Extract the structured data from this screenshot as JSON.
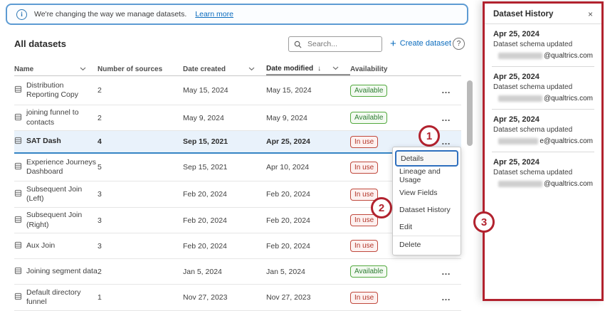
{
  "banner": {
    "message": "We're changing the way we manage datasets.",
    "link_label": "Learn more"
  },
  "toolbar": {
    "title": "All datasets",
    "search_placeholder": "Search...",
    "create_label": "Create dataset",
    "help_label": "?"
  },
  "table": {
    "columns": [
      {
        "label": "Name",
        "chevron": true,
        "sorted": false
      },
      {
        "label": "Number of sources",
        "chevron": false,
        "sorted": false
      },
      {
        "label": "Date created",
        "chevron": true,
        "sorted": false
      },
      {
        "label": "Date modified",
        "chevron": true,
        "sorted": true,
        "sort_icon": "↓"
      },
      {
        "label": "Availability",
        "chevron": false,
        "sorted": false
      }
    ],
    "rows": [
      {
        "name": "Distribution Reporting Copy",
        "sources": "2",
        "created": "May 15, 2024",
        "modified": "May 15, 2024",
        "availability": "Available",
        "status": "available",
        "selected": false
      },
      {
        "name": "joining funnel to contacts",
        "sources": "2",
        "created": "May 9, 2024",
        "modified": "May 9, 2024",
        "availability": "Available",
        "status": "available",
        "selected": false
      },
      {
        "name": "SAT Dash",
        "sources": "4",
        "created": "Sep 15, 2021",
        "modified": "Apr 25, 2024",
        "availability": "In use",
        "status": "in-use",
        "selected": true
      },
      {
        "name": "Experience Journeys Dashboard",
        "sources": "5",
        "created": "Sep 15, 2021",
        "modified": "Apr 10, 2024",
        "availability": "In use",
        "status": "in-use",
        "selected": false
      },
      {
        "name": "Subsequent Join (Left)",
        "sources": "3",
        "created": "Feb 20, 2024",
        "modified": "Feb 20, 2024",
        "availability": "In use",
        "status": "in-use",
        "selected": false
      },
      {
        "name": "Subsequent Join (Right)",
        "sources": "3",
        "created": "Feb 20, 2024",
        "modified": "Feb 20, 2024",
        "availability": "In use",
        "status": "in-use",
        "selected": false
      },
      {
        "name": "Aux Join",
        "sources": "3",
        "created": "Feb 20, 2024",
        "modified": "Feb 20, 2024",
        "availability": "In use",
        "status": "in-use",
        "selected": false
      },
      {
        "name": "Joining segment data",
        "sources": "2",
        "created": "Jan 5, 2024",
        "modified": "Jan 5, 2024",
        "availability": "Available",
        "status": "available",
        "selected": false
      },
      {
        "name": "Default directory funnel",
        "sources": "1",
        "created": "Nov 27, 2023",
        "modified": "Nov 27, 2023",
        "availability": "In use",
        "status": "in-use",
        "selected": false
      }
    ],
    "row_actions_icon": "more-options-ellipsis"
  },
  "context_menu": {
    "items": [
      {
        "label": "Details",
        "focused": true,
        "divider_above": false
      },
      {
        "label": "Lineage and Usage",
        "focused": false,
        "divider_above": false
      },
      {
        "label": "View Fields",
        "focused": false,
        "divider_above": false
      },
      {
        "label": "Dataset History",
        "focused": false,
        "divider_above": false
      },
      {
        "label": "Edit",
        "focused": false,
        "divider_above": false
      },
      {
        "label": "Delete",
        "focused": false,
        "divider_above": true
      }
    ]
  },
  "history_panel": {
    "title": "Dataset History",
    "close_label": "×",
    "entries": [
      {
        "date": "Apr 25, 2024",
        "action": "Dataset schema updated",
        "email_redacted": true,
        "email_visible": "@qualtrics.com"
      },
      {
        "date": "Apr 25, 2024",
        "action": "Dataset schema updated",
        "email_redacted": true,
        "email_visible": "@qualtrics.com"
      },
      {
        "date": "Apr 25, 2024",
        "action": "Dataset schema updated",
        "email_redacted": true,
        "email_visible": "e@qualtrics.com"
      },
      {
        "date": "Apr 25, 2024",
        "action": "Dataset schema updated",
        "email_redacted": true,
        "email_visible": "@qualtrics.com"
      }
    ]
  },
  "annotations": {
    "color": "#b2222e",
    "callouts": [
      {
        "label": "1"
      },
      {
        "label": "2"
      },
      {
        "label": "3"
      }
    ]
  },
  "colors": {
    "link_blue": "#0b6cbe",
    "banner_border_blue": "#5d9bd3",
    "selected_row_blue": "#e9f2fb",
    "selected_row_border": "#3584c4",
    "available_green": "#2e7d32",
    "in_use_red": "#b3362a",
    "annotation_red": "#b2222e",
    "focus_ring_blue": "#2e6fbe"
  }
}
